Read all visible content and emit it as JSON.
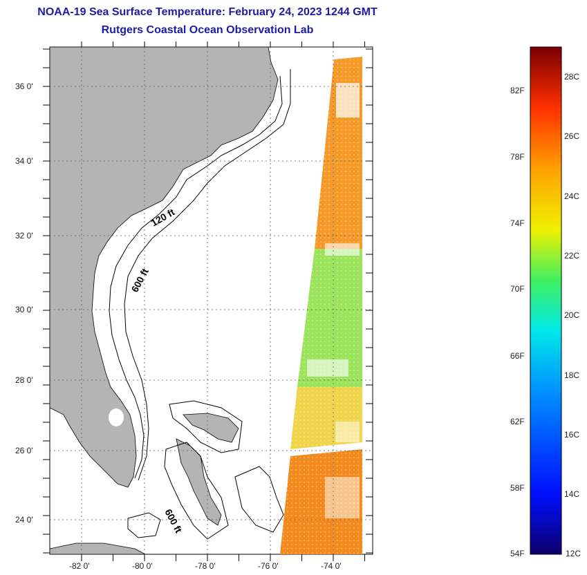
{
  "header": {
    "title": "NOAA-19 Sea Surface Temperature:  February 24, 2023 1244 GMT",
    "subtitle": "Rutgers Coastal Ocean Observation Lab"
  },
  "map": {
    "lat_labels": [
      "36 0'",
      "34 0'",
      "32 0'",
      "30 0'",
      "28 0'",
      "26 0'",
      "24 0'"
    ],
    "lon_labels": [
      "-82 0'",
      "-80 0'",
      "-78 0'",
      "-76 0'",
      "-74 0'"
    ],
    "contour_labels": [
      "120 ft",
      "600 ft",
      "600 ft"
    ]
  },
  "colorbar": {
    "f_labels": [
      "82F",
      "78F",
      "74F",
      "70F",
      "66F",
      "62F",
      "58F",
      "54F"
    ],
    "c_labels": [
      "28C",
      "26C",
      "24C",
      "22C",
      "20C",
      "18C",
      "16C",
      "14C",
      "12C"
    ]
  },
  "colors": {
    "land": "#b4b4b4",
    "title": "#1b1ba6"
  }
}
